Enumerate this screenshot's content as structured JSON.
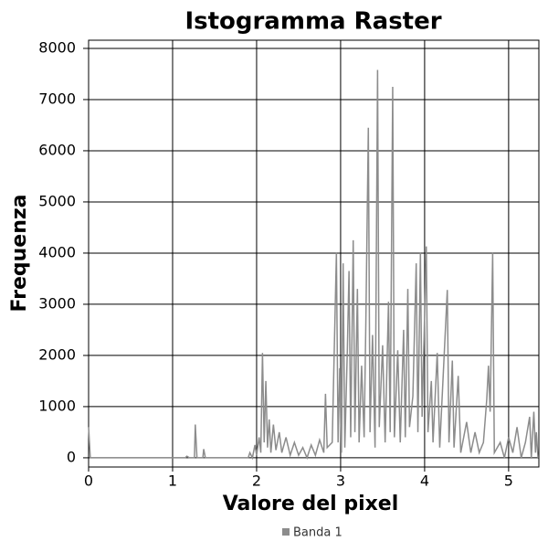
{
  "chart_data": {
    "type": "line",
    "title": "Istogramma Raster",
    "x_label": "Valore del pixel",
    "y_label": "Frequenza",
    "x": [
      0,
      0.02,
      1.15,
      1.17,
      1.2,
      1.26,
      1.27,
      1.29,
      1.36,
      1.37,
      1.39,
      1.9,
      1.92,
      1.95,
      1.98,
      2.0,
      2.03,
      2.05,
      2.07,
      2.09,
      2.11,
      2.13,
      2.15,
      2.17,
      2.2,
      2.23,
      2.27,
      2.3,
      2.35,
      2.4,
      2.45,
      2.5,
      2.55,
      2.6,
      2.65,
      2.7,
      2.75,
      2.8,
      2.82,
      2.84,
      2.9,
      2.95,
      2.97,
      2.99,
      3.01,
      3.03,
      3.05,
      3.08,
      3.1,
      3.12,
      3.15,
      3.17,
      3.2,
      3.22,
      3.25,
      3.28,
      3.3,
      3.33,
      3.35,
      3.38,
      3.41,
      3.44,
      3.46,
      3.5,
      3.53,
      3.57,
      3.59,
      3.62,
      3.64,
      3.68,
      3.71,
      3.75,
      3.77,
      3.8,
      3.82,
      3.86,
      3.9,
      3.92,
      3.95,
      3.97,
      4.02,
      4.04,
      4.08,
      4.1,
      4.15,
      4.18,
      4.27,
      4.29,
      4.33,
      4.35,
      4.4,
      4.43,
      4.5,
      4.55,
      4.6,
      4.65,
      4.7,
      4.74,
      4.76,
      4.78,
      4.81,
      4.83,
      4.9,
      4.95,
      5.0,
      5.05,
      5.1,
      5.15,
      5.2,
      5.25,
      5.27,
      5.3,
      5.32,
      5.33,
      5.35
    ],
    "series": [
      {
        "name": "Banda 1",
        "color": "#8c8c8c",
        "values": [
          600,
          0,
          0,
          30,
          0,
          0,
          650,
          0,
          0,
          170,
          0,
          0,
          100,
          0,
          250,
          50,
          400,
          100,
          2050,
          300,
          1500,
          200,
          750,
          100,
          650,
          150,
          500,
          100,
          400,
          50,
          300,
          50,
          200,
          0,
          250,
          50,
          350,
          100,
          1250,
          200,
          300,
          4000,
          300,
          1750,
          100,
          3800,
          200,
          2100,
          3650,
          400,
          4250,
          500,
          3300,
          300,
          1800,
          400,
          2600,
          6450,
          500,
          2400,
          200,
          7580,
          600,
          2200,
          300,
          3050,
          500,
          7250,
          400,
          2100,
          300,
          2500,
          400,
          3300,
          600,
          1200,
          3800,
          500,
          4000,
          800,
          4130,
          500,
          1500,
          300,
          2050,
          200,
          3280,
          300,
          1900,
          200,
          1600,
          100,
          700,
          100,
          500,
          100,
          300,
          1150,
          1800,
          900,
          4000,
          100,
          300,
          0,
          400,
          100,
          600,
          0,
          300,
          800,
          0,
          900,
          100,
          500,
          0
        ]
      }
    ],
    "xlim": [
      0,
      5.36
    ],
    "ylim": [
      -180,
      8160
    ],
    "xticks": [
      0,
      1,
      2,
      3,
      4,
      5
    ],
    "yticks": [
      0,
      1000,
      2000,
      3000,
      4000,
      5000,
      6000,
      7000,
      8000
    ],
    "grid": true,
    "legend": "bottom"
  }
}
